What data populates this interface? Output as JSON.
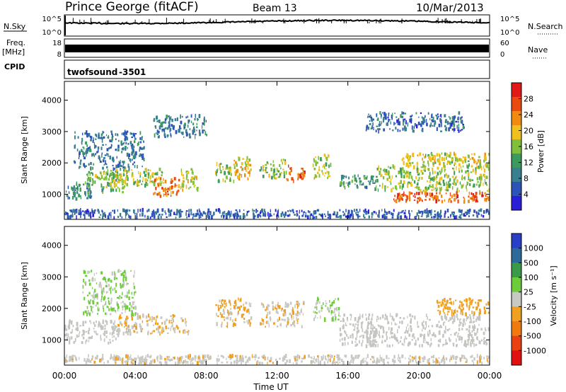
{
  "header": {
    "station": "Prince George (fitACF)",
    "beam": "Beam 13",
    "date": "10/Mar/2013"
  },
  "nsky_panel": {
    "left_label": "N.Sky",
    "left_ticks": [
      "10^5",
      "10^0"
    ],
    "right_ticks": [
      "10^5",
      "10^0"
    ],
    "right_label": "N.Search"
  },
  "freq_panel": {
    "left_label_1": "Freq.",
    "left_label_2": "[MHz]",
    "left_ticks": [
      "18",
      "8"
    ],
    "right_ticks": [
      "60",
      "0"
    ],
    "right_label": "Nave"
  },
  "cpid_panel": {
    "label": "CPID",
    "program": "twofsound",
    "id": "-3501"
  },
  "colors": {
    "power_scale": [
      "#2a1fd9",
      "#2c54b8",
      "#3a7f8f",
      "#3d9a5e",
      "#7fbf3b",
      "#f0c020",
      "#f08a10",
      "#e84a10",
      "#e01818"
    ],
    "velocity_scale": [
      "#2a3fc8",
      "#2c6a9c",
      "#3a9a4a",
      "#6ccc3a",
      "#c8c8c4",
      "#f0a020",
      "#f07a10",
      "#e84010",
      "#e01010"
    ],
    "ground_scatter": "#c4c4c0"
  },
  "chart_data": [
    {
      "type": "heatmap",
      "name": "power",
      "xlabel": "",
      "ylabel": "Slant Range [km]",
      "x_ticks": [
        "00:00",
        "04:00",
        "08:00",
        "12:00",
        "16:00",
        "20:00",
        "00:00"
      ],
      "xlim": [
        0,
        24
      ],
      "y_ticks": [
        "1000",
        "2000",
        "3000",
        "4000"
      ],
      "ylim": [
        200,
        4600
      ],
      "colorbar": {
        "label": "Power [dB]",
        "ticks": [
          "28",
          "24",
          "20",
          "16",
          "12",
          "8",
          "4"
        ],
        "range": [
          0,
          32
        ]
      },
      "regions": [
        {
          "t0": 0.0,
          "t1": 1.5,
          "r0": 850,
          "r1": 1350,
          "db": 8
        },
        {
          "t0": 1.0,
          "t1": 3.5,
          "r0": 1050,
          "r1": 1750,
          "db": 14
        },
        {
          "t0": 2.5,
          "t1": 5.5,
          "r0": 1250,
          "r1": 1800,
          "db": 17
        },
        {
          "t0": 5.0,
          "t1": 6.5,
          "r0": 900,
          "r1": 1500,
          "db": 26
        },
        {
          "t0": 6.5,
          "t1": 7.5,
          "r0": 1100,
          "r1": 1800,
          "db": 18
        },
        {
          "t0": 0.5,
          "t1": 4.5,
          "r0": 1800,
          "r1": 3000,
          "db": 7
        },
        {
          "t0": 8.5,
          "t1": 9.5,
          "r0": 1400,
          "r1": 2000,
          "db": 16
        },
        {
          "t0": 9.5,
          "t1": 10.5,
          "r0": 1400,
          "r1": 2200,
          "db": 20
        },
        {
          "t0": 11.0,
          "t1": 12.5,
          "r0": 1500,
          "r1": 2100,
          "db": 16
        },
        {
          "t0": 12.5,
          "t1": 13.5,
          "r0": 1400,
          "r1": 1900,
          "db": 27
        },
        {
          "t0": 14.0,
          "t1": 15.0,
          "r0": 1500,
          "r1": 2300,
          "db": 18
        },
        {
          "t0": 15.5,
          "t1": 17.5,
          "r0": 1200,
          "r1": 1600,
          "db": 10
        },
        {
          "t0": 17.5,
          "t1": 24.0,
          "r0": 1100,
          "r1": 1900,
          "db": 16
        },
        {
          "t0": 18.5,
          "t1": 24.0,
          "r0": 750,
          "r1": 1050,
          "db": 27
        },
        {
          "t0": 19.0,
          "t1": 24.0,
          "r0": 1900,
          "r1": 2300,
          "db": 18
        },
        {
          "t0": 5.0,
          "t1": 8.0,
          "r0": 2800,
          "r1": 3500,
          "db": 8
        },
        {
          "t0": 17.0,
          "t1": 22.5,
          "r0": 3000,
          "r1": 3600,
          "db": 6
        },
        {
          "t0": 0.0,
          "t1": 24.0,
          "r0": 250,
          "r1": 500,
          "db": 5
        }
      ]
    },
    {
      "type": "heatmap",
      "name": "velocity",
      "xlabel": "Time UT",
      "ylabel": "Slant Range [km]",
      "x_ticks": [
        "00:00",
        "04:00",
        "08:00",
        "12:00",
        "16:00",
        "20:00",
        "00:00"
      ],
      "xlim": [
        0,
        24
      ],
      "y_ticks": [
        "1000",
        "2000",
        "3000",
        "4000"
      ],
      "ylim": [
        200,
        4600
      ],
      "colorbar": {
        "label": "Velocity [m s⁻¹]",
        "ticks": [
          "1000",
          "500",
          "100",
          "25",
          "-25",
          "-100",
          "-500",
          "-1000"
        ],
        "range": [
          -1200,
          1200
        ]
      },
      "regions": [
        {
          "t0": 0.0,
          "t1": 3.0,
          "r0": 900,
          "r1": 1600,
          "v": 0,
          "gs": true
        },
        {
          "t0": 3.0,
          "t1": 7.0,
          "r0": 1200,
          "r1": 1800,
          "v": -150
        },
        {
          "t0": 1.0,
          "t1": 4.0,
          "r0": 1800,
          "r1": 3200,
          "v": 200
        },
        {
          "t0": 8.5,
          "t1": 10.5,
          "r0": 1400,
          "r1": 2300,
          "v": -200
        },
        {
          "t0": 11.0,
          "t1": 13.5,
          "r0": 1400,
          "r1": 2200,
          "v": -120
        },
        {
          "t0": 14.0,
          "t1": 15.5,
          "r0": 1600,
          "r1": 2300,
          "v": 150
        },
        {
          "t0": 15.5,
          "t1": 24.0,
          "r0": 800,
          "r1": 1800,
          "v": 0,
          "gs": true
        },
        {
          "t0": 21.0,
          "t1": 24.0,
          "r0": 1800,
          "r1": 2300,
          "v": -300
        },
        {
          "t0": 0.0,
          "t1": 24.0,
          "r0": 250,
          "r1": 500,
          "v": -50
        }
      ]
    }
  ]
}
